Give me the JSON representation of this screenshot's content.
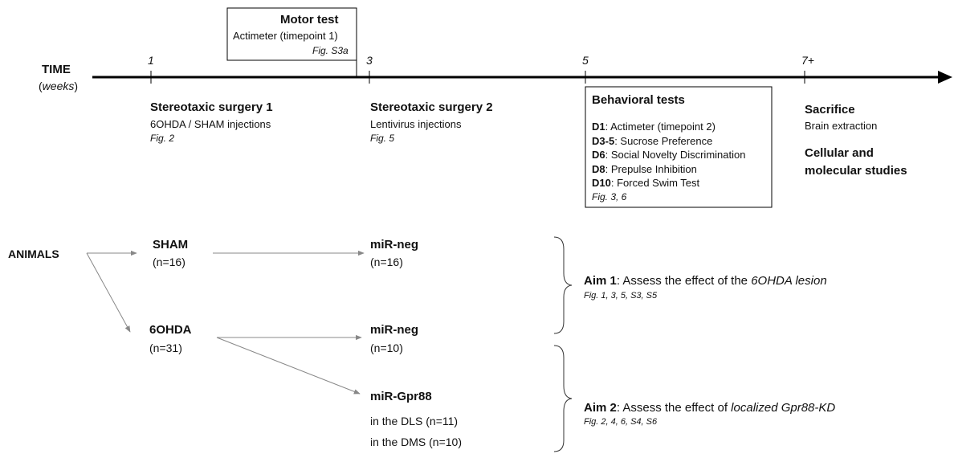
{
  "timeline": {
    "label": "TIME",
    "unit": {
      "open": "(",
      "text": "weeks",
      "close": ")"
    },
    "ticks": [
      "1",
      "3",
      "5",
      "7+"
    ]
  },
  "motor_test": {
    "title": "Motor test",
    "lines": [
      "Actimeter (timepoint 1)"
    ],
    "fig": "Fig. S3a"
  },
  "surgery1": {
    "title": "Stereotaxic surgery 1",
    "lines": [
      "6OHDA / SHAM injections"
    ],
    "fig": "Fig. 2"
  },
  "surgery2": {
    "title": "Stereotaxic surgery 2",
    "lines": [
      "Lentivirus injections"
    ],
    "fig": "Fig. 5"
  },
  "behavioral": {
    "title": "Behavioral tests",
    "items": [
      {
        "day": "D1",
        "text": ": Actimeter (timepoint 2)"
      },
      {
        "day": "D3-5",
        "text": ": Sucrose Preference"
      },
      {
        "day": "D6",
        "text": ": Social Novelty Discrimination"
      },
      {
        "day": "D8",
        "text": ": Prepulse Inhibition"
      },
      {
        "day": "D10",
        "text": ": Forced Swim Test"
      }
    ],
    "fig": "Fig. 3, 6"
  },
  "sacrifice": {
    "title": "Sacrifice",
    "lines": [
      "Brain extraction"
    ],
    "subtitle": [
      "Cellular and",
      "molecular studies"
    ]
  },
  "animals": {
    "label": "ANIMALS",
    "groups": [
      {
        "name": "SHAM",
        "n": "(n=16)"
      },
      {
        "name": "6OHDA",
        "n": "(n=31)"
      },
      {
        "name": "miR-neg",
        "n": "(n=16)"
      },
      {
        "name": "miR-neg",
        "n": "(n=10)"
      },
      {
        "name": "miR-Gpr88",
        "sub": [
          "in the DLS (n=11)",
          "in the DMS (n=10)"
        ]
      }
    ]
  },
  "aims": [
    {
      "name": "Aim 1",
      "text": ": Assess the effect of the ",
      "emph": "6OHDA lesion",
      "fig": "Fig. 1, 3, 5, S3, S5"
    },
    {
      "name": "Aim 2",
      "text": ": Assess the effect of ",
      "emph": "localized Gpr88-KD",
      "fig": "Fig. 2, 4, 6, S4, S6"
    }
  ]
}
